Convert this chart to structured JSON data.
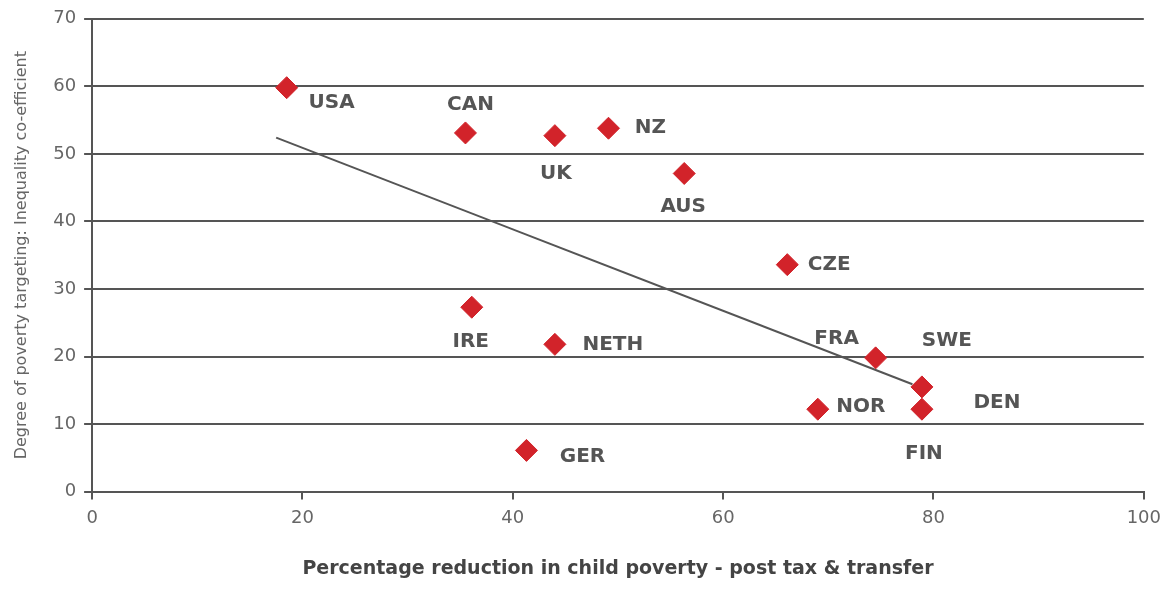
{
  "chart_data": {
    "type": "scatter",
    "xlabel": "Percentage reduction in child poverty - post tax & transfer",
    "ylabel": "Degree of poverty targeting: Inequality co-efficient",
    "xlim": [
      0,
      100
    ],
    "xticks": [
      0,
      20,
      40,
      60,
      80,
      100
    ],
    "ylim": [
      0,
      70
    ],
    "yticks": [
      0,
      10,
      20,
      30,
      40,
      50,
      60,
      70
    ],
    "grid": "y",
    "legend": false,
    "marker": "diamond",
    "series": [
      {
        "type": "scatter",
        "color": "#d2232a",
        "x": [
          18.5,
          35.5,
          44.0,
          49.1,
          56.3,
          66.1,
          36.1,
          44.0,
          41.3,
          74.5,
          78.9,
          69.0,
          78.9
        ],
        "values": [
          59.8,
          53.1,
          52.7,
          53.8,
          47.1,
          33.6,
          27.3,
          21.8,
          6.1,
          19.8,
          15.5,
          12.2,
          12.2
        ]
      },
      {
        "type": "line",
        "color": "#555555",
        "marker": "none",
        "x": [
          17.5,
          78.0
        ],
        "values": [
          52.4,
          15.9
        ]
      }
    ],
    "annotations": [
      {
        "text": "USA",
        "x": 18.5,
        "y": 59.8
      },
      {
        "text": "CAN",
        "x": 35.5,
        "y": 53.1
      },
      {
        "text": "UK",
        "x": 44.0,
        "y": 52.7
      },
      {
        "text": "NZ",
        "x": 49.1,
        "y": 53.8
      },
      {
        "text": "AUS",
        "x": 56.3,
        "y": 47.1
      },
      {
        "text": "CZE",
        "x": 66.1,
        "y": 33.6
      },
      {
        "text": "IRE",
        "x": 36.1,
        "y": 27.3
      },
      {
        "text": "NETH",
        "x": 44.0,
        "y": 21.8
      },
      {
        "text": "GER",
        "x": 41.3,
        "y": 6.1
      },
      {
        "text": "FRA",
        "x": 74.5,
        "y": 19.8
      },
      {
        "text": "SWE",
        "x": 78.9,
        "y": 15.5
      },
      {
        "text": "NOR",
        "x": 69.0,
        "y": 12.2
      },
      {
        "text": "DEN",
        "x": 78.9,
        "y": 12.2
      },
      {
        "text": "FIN",
        "x": 78.9,
        "y": 12.2
      }
    ]
  }
}
